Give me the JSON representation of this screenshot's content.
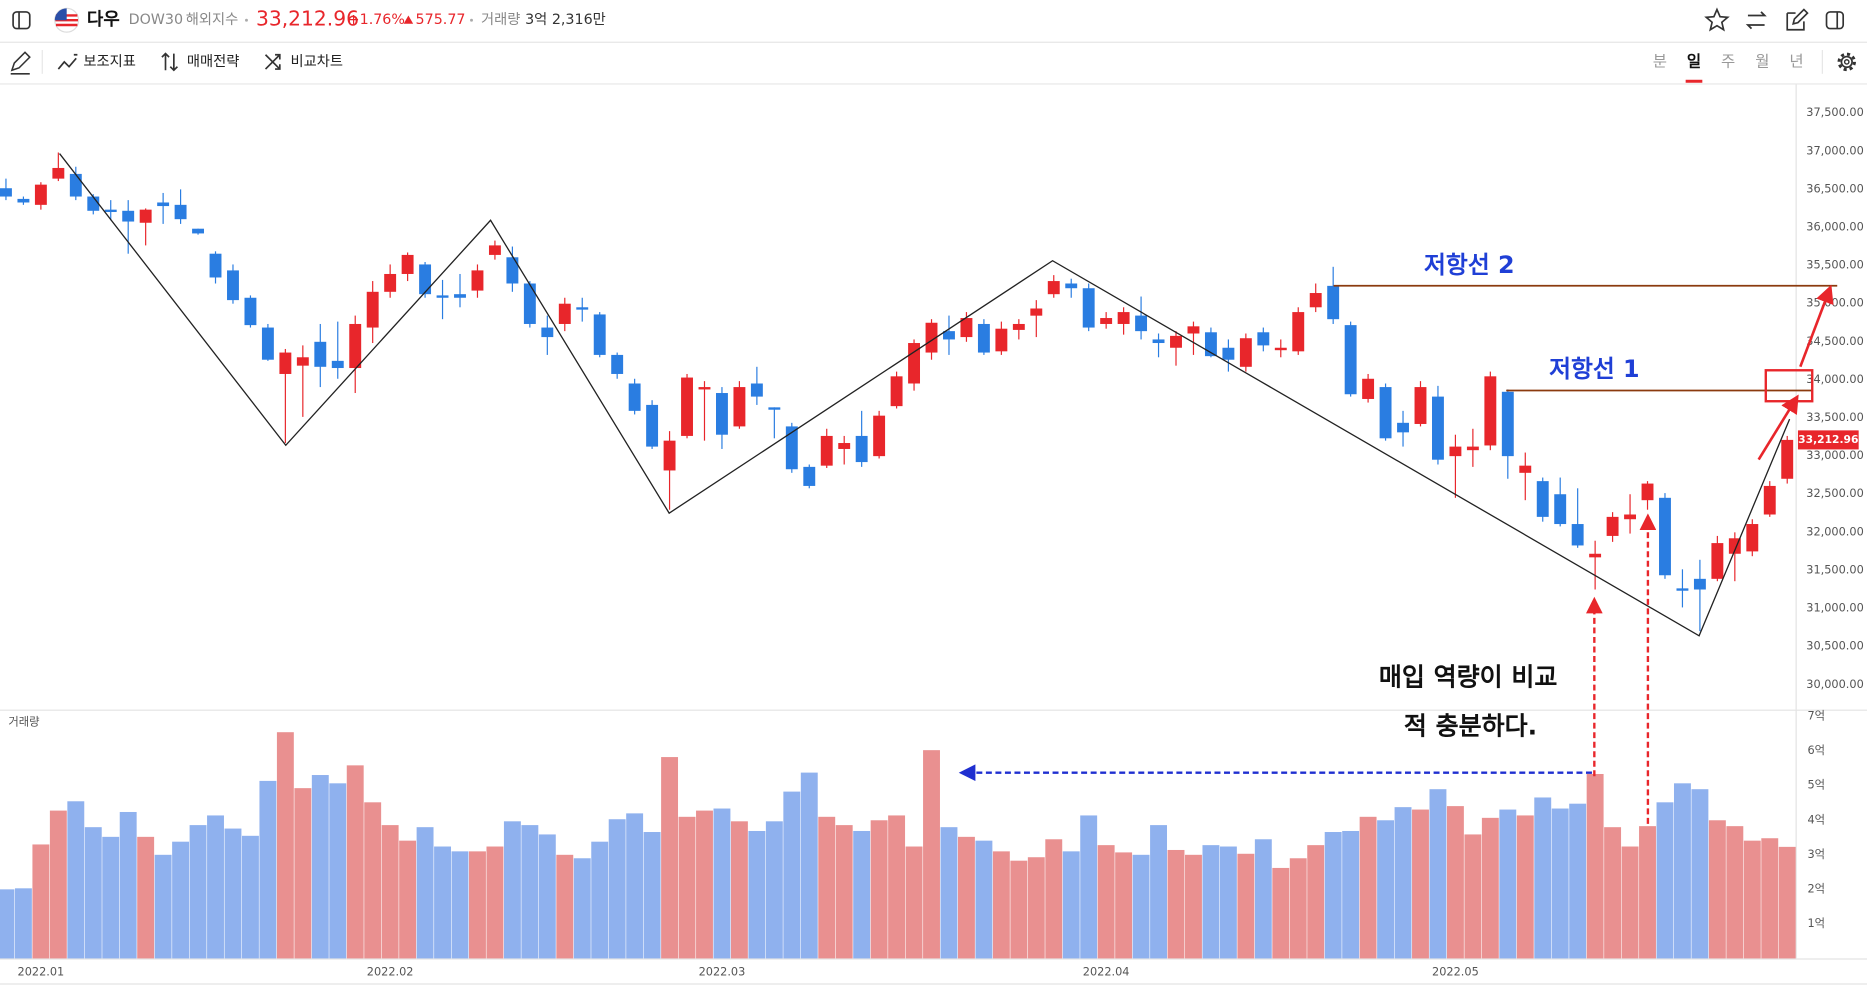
{
  "header": {
    "name": "다우",
    "code": "DOW30",
    "market": "해외지수",
    "price": "33,212.96",
    "change_pct": "+1.76%",
    "change": "575.77",
    "volume_label": "거래량",
    "volume": "3억 2,316만"
  },
  "toolbar": {
    "tools": [
      "보조지표",
      "매매전략",
      "비교차트"
    ],
    "periods": [
      "분",
      "일",
      "주",
      "월",
      "년"
    ],
    "active_period": 1
  },
  "chart_data": [
    {
      "type": "candlestick",
      "up_color": "#e8262b",
      "down_color": "#2a7de1",
      "categories": [
        null,
        null,
        "2022.01",
        null,
        null,
        null,
        null,
        null,
        null,
        null,
        null,
        null,
        null,
        null,
        null,
        null,
        null,
        null,
        null,
        null,
        null,
        null,
        "2022.02",
        null,
        null,
        null,
        null,
        null,
        null,
        null,
        null,
        null,
        null,
        null,
        null,
        null,
        null,
        null,
        null,
        null,
        null,
        "2022.03",
        null,
        null,
        null,
        null,
        null,
        null,
        null,
        null,
        null,
        null,
        null,
        null,
        null,
        null,
        null,
        null,
        null,
        null,
        null,
        null,
        null,
        "2022.04",
        null,
        null,
        null,
        null,
        null,
        null,
        null,
        null,
        null,
        null,
        null,
        null,
        null,
        null,
        null,
        null,
        null,
        null,
        null,
        "2022.05",
        null,
        null,
        null,
        null,
        null,
        null,
        null,
        null,
        null,
        null,
        null,
        null,
        null,
        null,
        null,
        null,
        null,
        null,
        null
      ],
      "open": [
        36515,
        36375,
        36297,
        36641,
        36703,
        36406,
        36234,
        36219,
        36062,
        36328,
        36297,
        35984,
        35656,
        35437,
        35078,
        34687,
        34078,
        34187,
        34500,
        34250,
        34156,
        34687,
        35156,
        35390,
        35515,
        35109,
        35125,
        35172,
        35640,
        35609,
        35265,
        34687,
        34734,
        34953,
        34859,
        34328,
        33953,
        33672,
        32812,
        33265,
        33875,
        33828,
        33390,
        33953,
        33640,
        33390,
        32859,
        32875,
        33094,
        33265,
        33000,
        33656,
        33953,
        34359,
        34640,
        34562,
        34734,
        34375,
        34656,
        34843,
        35125,
        35265,
        35203,
        34734,
        34734,
        34844,
        34531,
        34422,
        34609,
        34625,
        34422,
        34172,
        34625,
        34390,
        34375,
        34953,
        35234,
        34719,
        33750,
        33906,
        33437,
        33422,
        33781,
        33000,
        33078,
        33140,
        33844,
        32781,
        32672,
        32500,
        32109,
        31672,
        31953,
        32172,
        32422,
        32453,
        31265,
        31390,
        31390,
        31719,
        31750,
        32234,
        32703
      ],
      "high": [
        36641,
        36406,
        36594,
        36984,
        36797,
        36437,
        36359,
        36359,
        36250,
        36453,
        36500,
        35984,
        35687,
        35515,
        35109,
        34734,
        34406,
        34453,
        34734,
        34765,
        34844,
        35297,
        35515,
        35672,
        35547,
        35312,
        35390,
        35515,
        35828,
        35750,
        35297,
        34844,
        35078,
        35078,
        34890,
        34359,
        34015,
        33734,
        33328,
        34078,
        33984,
        33906,
        33984,
        34172,
        33640,
        33437,
        32890,
        33359,
        33265,
        33594,
        33594,
        34109,
        34531,
        34797,
        34844,
        34890,
        34797,
        34765,
        34797,
        35047,
        35375,
        35328,
        35265,
        34890,
        34953,
        35094,
        34609,
        34640,
        34765,
        34687,
        34531,
        34609,
        34687,
        34531,
        34953,
        35265,
        35484,
        34765,
        34078,
        33953,
        33594,
        33984,
        33922,
        33281,
        33359,
        34109,
        33875,
        33047,
        32719,
        32719,
        32578,
        31890,
        32265,
        32500,
        32672,
        32515,
        31515,
        31640,
        31953,
        32000,
        32172,
        32672,
        33265
      ],
      "low": [
        36359,
        36297,
        36234,
        36609,
        36359,
        36172,
        36094,
        35656,
        35765,
        36047,
        36047,
        35906,
        35265,
        35000,
        34687,
        34250,
        33172,
        33515,
        33906,
        34015,
        33828,
        34484,
        35078,
        35297,
        35078,
        34797,
        34953,
        35078,
        35578,
        35156,
        34687,
        34328,
        34640,
        34765,
        34297,
        34015,
        33547,
        33094,
        32297,
        33234,
        33203,
        33094,
        33359,
        33672,
        33234,
        32781,
        32578,
        32844,
        32890,
        32859,
        32969,
        33625,
        33859,
        34265,
        34328,
        34500,
        34328,
        34328,
        34531,
        34562,
        35078,
        35078,
        34640,
        34672,
        34594,
        34531,
        34297,
        34187,
        34328,
        34297,
        34109,
        34109,
        34375,
        34297,
        34328,
        34890,
        34734,
        33781,
        33703,
        33203,
        33125,
        33390,
        32890,
        32453,
        32859,
        33078,
        32703,
        32422,
        32140,
        32078,
        31797,
        31250,
        31875,
        31984,
        32297,
        31390,
        31015,
        30703,
        31359,
        31359,
        31687,
        32203,
        32640
      ],
      "close": [
        36406,
        36328,
        36562,
        36781,
        36406,
        36219,
        36203,
        36078,
        36234,
        36281,
        36109,
        35922,
        35344,
        35047,
        34719,
        34265,
        34359,
        34297,
        34172,
        34156,
        34734,
        35156,
        35390,
        35640,
        35125,
        35078,
        35078,
        35437,
        35765,
        35265,
        34734,
        34562,
        35000,
        34922,
        34328,
        34078,
        33594,
        33125,
        33203,
        34031,
        33906,
        33281,
        33906,
        33781,
        33609,
        32828,
        32609,
        33265,
        33172,
        32922,
        33531,
        34047,
        34484,
        34750,
        34531,
        34812,
        34359,
        34672,
        34734,
        34937,
        35297,
        35203,
        34687,
        34812,
        34890,
        34640,
        34484,
        34578,
        34703,
        34312,
        34265,
        34547,
        34453,
        34422,
        34890,
        35140,
        34797,
        33812,
        34015,
        33234,
        33312,
        33906,
        32953,
        33125,
        33125,
        34047,
        33000,
        32875,
        32203,
        32109,
        31828,
        31719,
        32203,
        32234,
        32640,
        31437,
        31234,
        31250,
        31859,
        31922,
        32109,
        32609,
        33212.96
      ],
      "ylim": [
        29690,
        37860
      ],
      "yticks": [
        {
          "value": 30000,
          "label": "30,000.00"
        },
        {
          "value": 30500,
          "label": "30,500.00"
        },
        {
          "value": 31000,
          "label": "31,000.00"
        },
        {
          "value": 31500,
          "label": "31,500.00"
        },
        {
          "value": 32000,
          "label": "32,000.00"
        },
        {
          "value": 32500,
          "label": "32,500.00"
        },
        {
          "value": 33000,
          "label": "33,000.00"
        },
        {
          "value": 33500,
          "label": "33,500.00"
        },
        {
          "value": 34000,
          "label": "34,000.00"
        },
        {
          "value": 34500,
          "label": "34,500.00"
        },
        {
          "value": 35000,
          "label": "35,000.00"
        },
        {
          "value": 35500,
          "label": "35,500.00"
        },
        {
          "value": 36000,
          "label": "36,000.00"
        },
        {
          "value": 36500,
          "label": "36,500.00"
        },
        {
          "value": 37000,
          "label": "37,000.00"
        },
        {
          "value": 37500,
          "label": "37,500.00"
        }
      ],
      "grid": false,
      "annotations": [
        "저항선 2",
        "저항선 1",
        "매입 역량이 비교",
        "적 충분하다."
      ]
    },
    {
      "type": "bar",
      "title": "거래량",
      "up_color": "#e99090",
      "down_color": "#8fb1ee",
      "values": [
        2.0,
        2.03,
        3.3,
        4.28,
        4.55,
        3.8,
        3.52,
        4.24,
        3.52,
        3.0,
        3.38,
        3.86,
        4.14,
        3.76,
        3.55,
        5.14,
        6.55,
        4.93,
        5.31,
        5.07,
        5.59,
        4.52,
        3.86,
        3.41,
        3.8,
        3.24,
        3.1,
        3.1,
        3.24,
        3.97,
        3.86,
        3.59,
        3.0,
        2.9,
        3.38,
        4.03,
        4.2,
        3.66,
        5.83,
        4.1,
        4.28,
        4.34,
        3.97,
        3.69,
        3.97,
        4.83,
        5.38,
        4.1,
        3.86,
        3.69,
        4.0,
        4.14,
        3.24,
        6.03,
        3.8,
        3.52,
        3.41,
        3.1,
        2.83,
        2.93,
        3.45,
        3.1,
        4.14,
        3.28,
        3.07,
        3.0,
        3.86,
        3.14,
        3.0,
        3.28,
        3.24,
        3.03,
        3.45,
        2.62,
        2.9,
        3.28,
        3.66,
        3.69,
        4.1,
        4.0,
        4.38,
        4.31,
        4.9,
        4.41,
        3.59,
        4.07,
        4.31,
        4.14,
        4.66,
        4.34,
        4.48,
        5.34,
        3.8,
        3.24,
        3.83,
        4.52,
        5.07,
        4.9,
        4.0,
        3.83,
        3.41,
        3.48,
        3.23
      ],
      "ylim": [
        0,
        7.17
      ],
      "yticks": [
        {
          "value": 1,
          "label": "1억"
        },
        {
          "value": 2,
          "label": "2억"
        },
        {
          "value": 3,
          "label": "3억"
        },
        {
          "value": 4,
          "label": "4억"
        },
        {
          "value": 5,
          "label": "5억"
        },
        {
          "value": 6,
          "label": "6억"
        },
        {
          "value": 7,
          "label": "7억"
        }
      ],
      "grid": false
    }
  ]
}
